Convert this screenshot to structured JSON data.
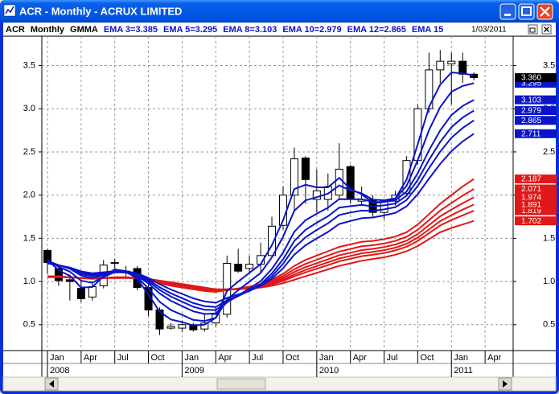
{
  "window": {
    "title": "ACR - Monthly - ACRUX LIMITED"
  },
  "chart_data": {
    "type": "candlestick",
    "symbol": "ACR",
    "period": "Monthly",
    "indicator": "GMMA",
    "date": "1/03/2011",
    "x": [
      "2008-01",
      "2008-02",
      "2008-03",
      "2008-04",
      "2008-05",
      "2008-06",
      "2008-07",
      "2008-08",
      "2008-09",
      "2008-10",
      "2008-11",
      "2008-12",
      "2009-01",
      "2009-02",
      "2009-03",
      "2009-04",
      "2009-05",
      "2009-06",
      "2009-07",
      "2009-08",
      "2009-09",
      "2009-10",
      "2009-11",
      "2009-12",
      "2010-01",
      "2010-02",
      "2010-03",
      "2010-04",
      "2010-05",
      "2010-06",
      "2010-07",
      "2010-08",
      "2010-09",
      "2010-10",
      "2010-11",
      "2010-12",
      "2011-01",
      "2011-02",
      "2011-03"
    ],
    "open": [
      1.36,
      1.15,
      1.02,
      0.92,
      0.82,
      0.95,
      1.21,
      1.12,
      1.15,
      0.93,
      0.67,
      0.46,
      0.46,
      0.5,
      0.45,
      0.52,
      0.62,
      1.2,
      1.15,
      1.2,
      1.3,
      1.65,
      2.0,
      2.43,
      1.95,
      1.95,
      2.0,
      2.33,
      1.93,
      1.95,
      1.8,
      1.93,
      2.02,
      2.4,
      3.0,
      3.45,
      3.52,
      3.55,
      3.4
    ],
    "high": [
      1.38,
      1.2,
      1.08,
      1.0,
      0.98,
      1.25,
      1.26,
      1.18,
      1.18,
      0.97,
      0.7,
      0.52,
      0.55,
      0.52,
      0.62,
      0.7,
      1.3,
      1.38,
      1.3,
      1.45,
      1.75,
      2.1,
      2.55,
      2.45,
      2.3,
      2.25,
      2.6,
      2.35,
      2.1,
      2.0,
      1.95,
      2.05,
      2.45,
      3.05,
      3.65,
      3.68,
      3.65,
      3.65,
      3.42
    ],
    "low": [
      1.09,
      0.95,
      0.78,
      0.76,
      0.78,
      0.92,
      1.15,
      1.05,
      0.9,
      0.6,
      0.38,
      0.44,
      0.42,
      0.42,
      0.42,
      0.48,
      0.58,
      1.1,
      1.1,
      1.1,
      1.28,
      1.6,
      1.82,
      1.9,
      1.8,
      1.82,
      1.95,
      1.9,
      1.88,
      1.75,
      1.72,
      1.88,
      2.0,
      2.35,
      2.95,
      3.3,
      3.05,
      3.3,
      3.33
    ],
    "close": [
      1.22,
      1.01,
      1.0,
      0.8,
      0.94,
      1.19,
      1.22,
      1.1,
      0.93,
      0.67,
      0.45,
      0.48,
      0.5,
      0.44,
      0.52,
      0.62,
      1.21,
      1.12,
      1.2,
      1.3,
      1.64,
      2.0,
      2.42,
      2.18,
      2.05,
      2.1,
      2.3,
      1.95,
      1.95,
      1.8,
      1.93,
      2.0,
      2.4,
      3.0,
      3.45,
      3.55,
      3.55,
      3.4,
      3.36
    ],
    "close_label": "3.360",
    "up_color": "#ffffff",
    "down_color": "#000000",
    "series": [
      {
        "name": "EMA 3=3.385",
        "color": "#0a14c8",
        "values": [
          1.25,
          1.13,
          1.065,
          0.93,
          0.935,
          1.06,
          1.14,
          1.12,
          1.03,
          0.85,
          0.65,
          0.56,
          0.53,
          0.49,
          0.5,
          0.58,
          0.89,
          1.0,
          1.1,
          1.2,
          1.42,
          1.71,
          2.07,
          2.12,
          2.09,
          2.09,
          2.2,
          2.07,
          2.01,
          1.91,
          1.92,
          1.96,
          2.18,
          2.59,
          3.02,
          3.28,
          3.42,
          3.41,
          3.385
        ]
      },
      {
        "name": "EMA 5=3.295",
        "color": "#0a14c8",
        "end_label": "3.295",
        "values": [
          1.25,
          1.17,
          1.113,
          1.009,
          0.986,
          1.054,
          1.109,
          1.106,
          1.047,
          0.921,
          0.764,
          0.669,
          0.613,
          0.555,
          0.543,
          0.579,
          0.789,
          0.899,
          0.999,
          1.099,
          1.279,
          1.519,
          1.819,
          1.939,
          1.976,
          2.017,
          2.111,
          2.057,
          2.021,
          1.947,
          1.941,
          1.961,
          2.107,
          2.405,
          2.753,
          3.019,
          3.196,
          3.264,
          3.295
        ]
      },
      {
        "name": "EMA 8=3.103",
        "color": "#0a14c8",
        "end_label": "3.103",
        "values": [
          1.24,
          1.189,
          1.147,
          1.07,
          1.041,
          1.074,
          1.106,
          1.105,
          1.066,
          0.978,
          0.861,
          0.776,
          0.715,
          0.654,
          0.624,
          0.63,
          0.759,
          0.839,
          0.919,
          1.004,
          1.145,
          1.335,
          1.576,
          1.71,
          1.785,
          1.855,
          1.954,
          1.953,
          1.953,
          1.919,
          1.921,
          1.939,
          2.041,
          2.254,
          2.52,
          2.749,
          2.927,
          3.032,
          3.103
        ]
      },
      {
        "name": "EMA 10=2.979",
        "color": "#0a14c8",
        "end_label": "2.979",
        "values": [
          1.23,
          1.19,
          1.155,
          1.09,
          1.063,
          1.086,
          1.11,
          1.108,
          1.076,
          1.002,
          0.902,
          0.825,
          0.766,
          0.707,
          0.673,
          0.669,
          0.767,
          0.831,
          0.898,
          0.971,
          1.093,
          1.258,
          1.469,
          1.598,
          1.68,
          1.756,
          1.855,
          1.872,
          1.886,
          1.87,
          1.881,
          1.903,
          1.993,
          2.176,
          2.408,
          2.616,
          2.786,
          2.898,
          2.979
        ]
      },
      {
        "name": "EMA 12=2.865",
        "color": "#0a14c8",
        "end_label": "2.865",
        "values": [
          1.22,
          1.188,
          1.159,
          1.104,
          1.079,
          1.096,
          1.115,
          1.113,
          1.085,
          1.021,
          0.933,
          0.863,
          0.807,
          0.75,
          0.715,
          0.705,
          0.783,
          0.835,
          0.891,
          0.954,
          1.06,
          1.205,
          1.392,
          1.513,
          1.596,
          1.674,
          1.77,
          1.798,
          1.821,
          1.818,
          1.835,
          1.86,
          1.943,
          2.106,
          2.313,
          2.503,
          2.664,
          2.777,
          2.865
        ]
      },
      {
        "name": "EMA 15",
        "color": "#0a14c8",
        "end_label": "2.711",
        "values": [
          1.21,
          1.185,
          1.162,
          1.117,
          1.095,
          1.107,
          1.121,
          1.118,
          1.095,
          1.042,
          0.968,
          0.907,
          0.856,
          0.804,
          0.769,
          0.754,
          0.811,
          0.85,
          0.894,
          0.945,
          1.032,
          1.153,
          1.311,
          1.42,
          1.499,
          1.574,
          1.665,
          1.701,
          1.732,
          1.741,
          1.765,
          1.794,
          1.87,
          2.011,
          2.191,
          2.361,
          2.51,
          2.621,
          2.711
        ]
      },
      {
        "color": "#e01818",
        "end_label": "2.187",
        "values": [
          1.06,
          1.06,
          1.05,
          1.04,
          1.03,
          1.04,
          1.05,
          1.05,
          1.04,
          1.02,
          0.98,
          0.95,
          0.93,
          0.91,
          0.89,
          0.88,
          0.9,
          0.92,
          0.94,
          0.97,
          1.02,
          1.09,
          1.18,
          1.25,
          1.3,
          1.35,
          1.4,
          1.43,
          1.46,
          1.47,
          1.49,
          1.52,
          1.57,
          1.66,
          1.78,
          1.9,
          2.0,
          2.1,
          2.187
        ]
      },
      {
        "color": "#e01818",
        "end_label": "2.071",
        "values": [
          1.058,
          1.058,
          1.05,
          1.04,
          1.032,
          1.04,
          1.048,
          1.048,
          1.04,
          1.022,
          0.987,
          0.96,
          0.94,
          0.92,
          0.9,
          0.887,
          0.902,
          0.918,
          0.935,
          0.96,
          1.003,
          1.064,
          1.142,
          1.204,
          1.252,
          1.3,
          1.347,
          1.377,
          1.407,
          1.42,
          1.44,
          1.47,
          1.517,
          1.6,
          1.71,
          1.821,
          1.909,
          1.994,
          2.071
        ]
      },
      {
        "color": "#e01818",
        "end_label": "1.974",
        "values": [
          1.056,
          1.056,
          1.05,
          1.04,
          1.034,
          1.04,
          1.046,
          1.046,
          1.04,
          1.024,
          0.993,
          0.968,
          0.948,
          0.928,
          0.908,
          0.893,
          0.904,
          0.916,
          0.931,
          0.952,
          0.989,
          1.042,
          1.11,
          1.166,
          1.212,
          1.258,
          1.303,
          1.333,
          1.363,
          1.378,
          1.398,
          1.428,
          1.473,
          1.55,
          1.652,
          1.755,
          1.833,
          1.906,
          1.974
        ]
      },
      {
        "color": "#e01818",
        "end_label": "1.891",
        "values": [
          1.054,
          1.054,
          1.05,
          1.04,
          1.036,
          1.04,
          1.044,
          1.044,
          1.04,
          1.026,
          0.998,
          0.974,
          0.954,
          0.934,
          0.914,
          0.898,
          0.906,
          0.914,
          0.928,
          0.946,
          0.977,
          1.023,
          1.082,
          1.134,
          1.178,
          1.222,
          1.266,
          1.296,
          1.326,
          1.342,
          1.362,
          1.392,
          1.436,
          1.508,
          1.603,
          1.699,
          1.768,
          1.832,
          1.891
        ]
      },
      {
        "color": "#e01818",
        "end_label": "1.819",
        "values": [
          1.052,
          1.052,
          1.05,
          1.04,
          1.038,
          1.04,
          1.042,
          1.042,
          1.04,
          1.028,
          1.003,
          0.98,
          0.96,
          0.94,
          0.92,
          0.903,
          0.908,
          0.912,
          0.925,
          0.94,
          0.967,
          1.006,
          1.058,
          1.106,
          1.148,
          1.19,
          1.233,
          1.263,
          1.293,
          1.31,
          1.33,
          1.36,
          1.403,
          1.47,
          1.56,
          1.649,
          1.711,
          1.766,
          1.819
        ]
      },
      {
        "color": "#e01818",
        "end_label": "1.702",
        "values": [
          1.05,
          1.05,
          1.05,
          1.04,
          1.04,
          1.04,
          1.04,
          1.04,
          1.04,
          1.03,
          1.01,
          0.99,
          0.97,
          0.95,
          0.93,
          0.91,
          0.91,
          0.91,
          0.92,
          0.93,
          0.95,
          0.98,
          1.02,
          1.06,
          1.1,
          1.14,
          1.18,
          1.21,
          1.24,
          1.26,
          1.28,
          1.31,
          1.35,
          1.41,
          1.49,
          1.57,
          1.62,
          1.66,
          1.702
        ]
      }
    ],
    "ylim": [
      0.2,
      3.84
    ],
    "yticks": [
      0.5,
      {
        "value": 1,
        "label": "1.0"
      },
      1.5,
      {
        "value": 2,
        "label": "2.0"
      },
      2.5,
      {
        "value": 3,
        "label": "3.0"
      },
      3.5
    ],
    "xlim": [
      "2008-01",
      "2011-06"
    ],
    "xticks": [
      {
        "value": "2008-01",
        "label": "Jan"
      },
      {
        "value": "2008-04",
        "label": "Apr"
      },
      {
        "value": "2008-07",
        "label": "Jul"
      },
      {
        "value": "2008-10",
        "label": "Oct"
      },
      {
        "value": "2009-01",
        "label": "Jan"
      },
      {
        "value": "2009-04",
        "label": "Apr"
      },
      {
        "value": "2009-07",
        "label": "Jul"
      },
      {
        "value": "2009-10",
        "label": "Oct"
      },
      {
        "value": "2010-01",
        "label": "Jan"
      },
      {
        "value": "2010-04",
        "label": "Apr"
      },
      {
        "value": "2010-07",
        "label": "Jul"
      },
      {
        "value": "2010-10",
        "label": "Oct"
      },
      {
        "value": "2011-01",
        "label": "Jan"
      },
      {
        "value": "2011-04",
        "label": "Apr"
      }
    ],
    "year_ticks": [
      {
        "value": "2008-01",
        "label": "2008"
      },
      {
        "value": "2009-01",
        "label": "2009"
      },
      {
        "value": "2010-01",
        "label": "2010"
      },
      {
        "value": "2011-01",
        "label": "2011"
      }
    ],
    "grid": true
  }
}
